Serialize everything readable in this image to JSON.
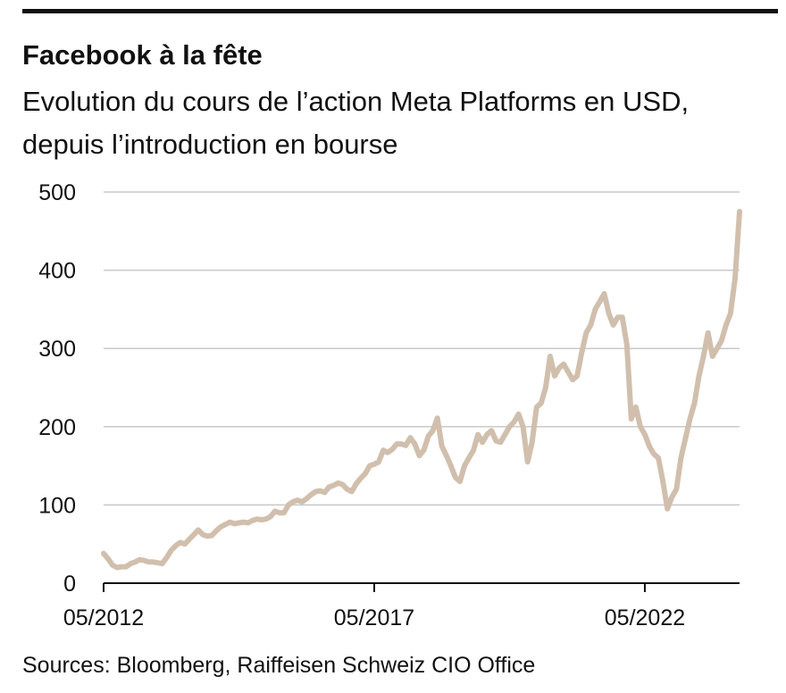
{
  "title": "Facebook à la fête",
  "subtitle": "Evolution du cours de l’action Meta Platforms en USD, depuis l’introduction en bourse",
  "source": "Sources: Bloomberg, Raiffeisen Schweiz CIO Office",
  "colors": {
    "line": "#d1bfad",
    "grid": "#c9c9c9",
    "axis": "#111111",
    "text": "#111111"
  },
  "chart_data": {
    "type": "line",
    "title": "Facebook à la fête",
    "subtitle": "Evolution du cours de l’action Meta Platforms en USD, depuis l’introduction en bourse",
    "xlabel": "",
    "ylabel": "",
    "ylim": [
      0,
      500
    ],
    "yticks": [
      0,
      100,
      200,
      300,
      400,
      500
    ],
    "yticks_labels": [
      "0",
      "100",
      "200",
      "300",
      "400",
      "500"
    ],
    "xlim": [
      "2012-05",
      "2024-02"
    ],
    "xticks": [
      "2012-05",
      "2017-05",
      "2022-05"
    ],
    "xticks_labels": [
      "05/2012",
      "05/2017",
      "05/2022"
    ],
    "grid": "horizontal",
    "legend": "none",
    "series": [
      {
        "x": [
          "2012-05",
          "2012-06",
          "2012-07",
          "2012-08",
          "2012-09",
          "2012-10",
          "2012-11",
          "2012-12",
          "2013-01",
          "2013-02",
          "2013-03",
          "2013-04",
          "2013-05",
          "2013-06",
          "2013-07",
          "2013-08",
          "2013-09",
          "2013-10",
          "2013-11",
          "2013-12",
          "2014-01",
          "2014-02",
          "2014-03",
          "2014-04",
          "2014-05",
          "2014-06",
          "2014-07",
          "2014-08",
          "2014-09",
          "2014-10",
          "2014-11",
          "2014-12",
          "2015-01",
          "2015-02",
          "2015-03",
          "2015-04",
          "2015-05",
          "2015-06",
          "2015-07",
          "2015-08",
          "2015-09",
          "2015-10",
          "2015-11",
          "2015-12",
          "2016-01",
          "2016-02",
          "2016-03",
          "2016-04",
          "2016-05",
          "2016-06",
          "2016-07",
          "2016-08",
          "2016-09",
          "2016-10",
          "2016-11",
          "2016-12",
          "2017-01",
          "2017-02",
          "2017-03",
          "2017-04",
          "2017-05",
          "2017-06",
          "2017-07",
          "2017-08",
          "2017-09",
          "2017-10",
          "2017-11",
          "2017-12",
          "2018-01",
          "2018-02",
          "2018-03",
          "2018-04",
          "2018-05",
          "2018-06",
          "2018-07",
          "2018-08",
          "2018-09",
          "2018-10",
          "2018-11",
          "2018-12",
          "2019-01",
          "2019-02",
          "2019-03",
          "2019-04",
          "2019-05",
          "2019-06",
          "2019-07",
          "2019-08",
          "2019-09",
          "2019-10",
          "2019-11",
          "2019-12",
          "2020-01",
          "2020-02",
          "2020-03",
          "2020-04",
          "2020-05",
          "2020-06",
          "2020-07",
          "2020-08",
          "2020-09",
          "2020-10",
          "2020-11",
          "2020-12",
          "2021-01",
          "2021-02",
          "2021-03",
          "2021-04",
          "2021-05",
          "2021-06",
          "2021-07",
          "2021-08",
          "2021-09",
          "2021-10",
          "2021-11",
          "2021-12",
          "2022-01",
          "2022-02",
          "2022-03",
          "2022-04",
          "2022-05",
          "2022-06",
          "2022-07",
          "2022-08",
          "2022-09",
          "2022-10",
          "2022-11",
          "2022-12",
          "2023-01",
          "2023-02",
          "2023-03",
          "2023-04",
          "2023-05",
          "2023-06",
          "2023-07",
          "2023-08",
          "2023-09",
          "2023-10",
          "2023-11",
          "2023-12",
          "2024-01",
          "2024-02"
        ],
        "values": [
          38,
          31,
          23,
          20,
          21,
          21,
          25,
          27,
          30,
          29,
          27,
          27,
          26,
          25,
          33,
          42,
          48,
          52,
          50,
          56,
          62,
          68,
          62,
          60,
          61,
          67,
          72,
          75,
          78,
          76,
          77,
          78,
          77,
          80,
          82,
          81,
          82,
          85,
          92,
          90,
          90,
          100,
          104,
          106,
          104,
          108,
          113,
          117,
          118,
          116,
          123,
          125,
          128,
          126,
          120,
          117,
          127,
          134,
          140,
          150,
          152,
          155,
          170,
          167,
          171,
          178,
          178,
          176,
          186,
          178,
          163,
          170,
          188,
          195,
          211,
          175,
          163,
          150,
          135,
          130,
          150,
          160,
          170,
          190,
          180,
          190,
          195,
          182,
          180,
          190,
          200,
          206,
          216,
          200,
          155,
          180,
          225,
          230,
          250,
          290,
          265,
          275,
          280,
          270,
          260,
          265,
          295,
          320,
          330,
          350,
          360,
          370,
          345,
          330,
          340,
          340,
          305,
          210,
          225,
          200,
          190,
          175,
          165,
          160,
          130,
          95,
          110,
          120,
          160,
          185,
          210,
          230,
          265,
          290,
          320,
          290,
          300,
          310,
          330,
          345,
          390,
          475
        ]
      }
    ]
  }
}
